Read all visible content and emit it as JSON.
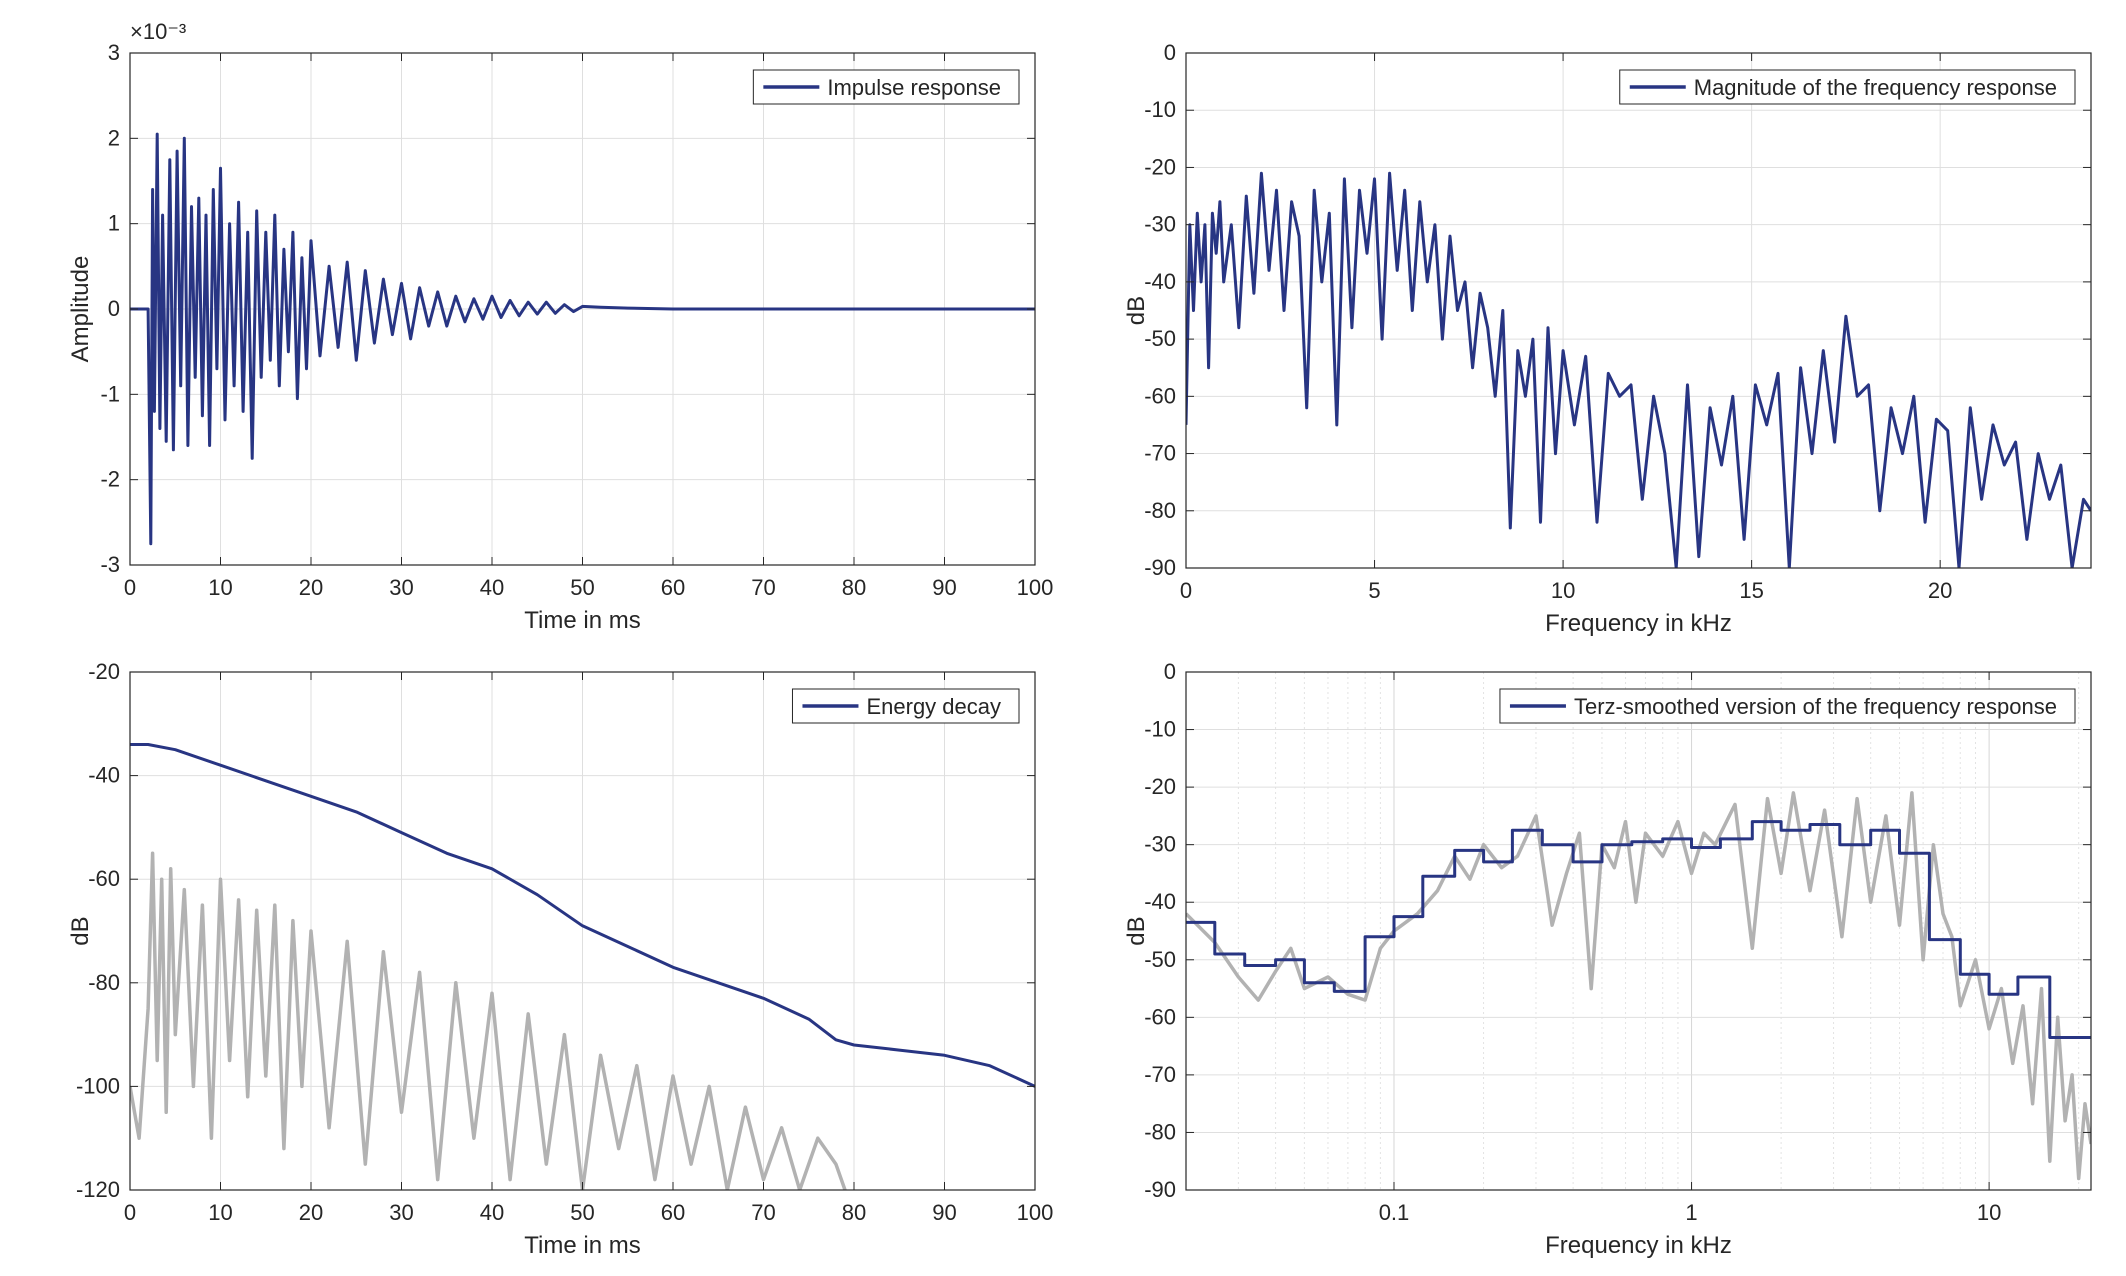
{
  "chart_data": [
    {
      "id": "impulse",
      "type": "line",
      "title": "",
      "xlabel": "Time in ms",
      "ylabel": "Amplitude",
      "exponent_label": "×10⁻³",
      "xlim": [
        0,
        100
      ],
      "ylim": [
        -3,
        3
      ],
      "xscale": "linear",
      "xticks": [
        0,
        10,
        20,
        30,
        40,
        50,
        60,
        70,
        80,
        90,
        100
      ],
      "yticks": [
        -3,
        -2,
        -1,
        0,
        1,
        2,
        3
      ],
      "grid": true,
      "legend": {
        "placement": "top-right",
        "entries": [
          "Impulse response"
        ]
      },
      "series": [
        {
          "name": "Impulse response",
          "color": "#283583",
          "x": [
            0,
            2.0,
            2.3,
            2.5,
            2.7,
            3.0,
            3.3,
            3.6,
            4.0,
            4.4,
            4.8,
            5.2,
            5.6,
            6.0,
            6.4,
            6.8,
            7.2,
            7.6,
            8.0,
            8.4,
            8.8,
            9.2,
            9.6,
            10.0,
            10.5,
            11.0,
            11.5,
            12.0,
            12.5,
            13.0,
            13.5,
            14.0,
            14.5,
            15.0,
            15.5,
            16.0,
            16.5,
            17.0,
            17.5,
            18.0,
            18.5,
            19.0,
            19.5,
            20.0,
            21,
            22,
            23,
            24,
            25,
            26,
            27,
            28,
            29,
            30,
            31,
            32,
            33,
            34,
            35,
            36,
            37,
            38,
            39,
            40,
            41,
            42,
            43,
            44,
            45,
            46,
            47,
            48,
            49,
            50,
            52,
            55,
            60,
            70,
            80,
            90,
            100
          ],
          "y": [
            0,
            0,
            -2.75,
            1.4,
            -1.2,
            2.05,
            -1.4,
            1.1,
            -1.55,
            1.75,
            -1.65,
            1.85,
            -0.9,
            2.0,
            -1.6,
            1.2,
            -0.8,
            1.3,
            -1.25,
            1.1,
            -1.6,
            1.4,
            -0.7,
            1.65,
            -1.3,
            1.0,
            -0.9,
            1.25,
            -1.2,
            0.9,
            -1.75,
            1.15,
            -0.8,
            0.9,
            -0.6,
            1.1,
            -0.9,
            0.7,
            -0.5,
            0.9,
            -1.05,
            0.6,
            -0.7,
            0.8,
            -0.55,
            0.5,
            -0.45,
            0.55,
            -0.6,
            0.45,
            -0.4,
            0.35,
            -0.3,
            0.3,
            -0.35,
            0.25,
            -0.2,
            0.2,
            -0.2,
            0.15,
            -0.15,
            0.12,
            -0.12,
            0.15,
            -0.1,
            0.1,
            -0.08,
            0.08,
            -0.06,
            0.08,
            -0.05,
            0.05,
            -0.03,
            0.03,
            0.02,
            0.01,
            0,
            0,
            0,
            0,
            0
          ]
        }
      ]
    },
    {
      "id": "magnitude",
      "type": "line",
      "title": "",
      "xlabel": "Frequency in kHz",
      "ylabel": "dB",
      "xlim": [
        0,
        24
      ],
      "ylim": [
        -90,
        0
      ],
      "xscale": "linear",
      "xticks": [
        0,
        5,
        10,
        15,
        20
      ],
      "yticks": [
        0,
        -10,
        -20,
        -30,
        -40,
        -50,
        -60,
        -70,
        -80,
        -90
      ],
      "grid": true,
      "legend": {
        "placement": "top-right",
        "entries": [
          "Magnitude of the frequency response"
        ]
      },
      "series": [
        {
          "name": "Magnitude of the frequency response",
          "color": "#283583",
          "x": [
            0,
            0.1,
            0.2,
            0.3,
            0.4,
            0.5,
            0.6,
            0.7,
            0.8,
            0.9,
            1.0,
            1.2,
            1.4,
            1.6,
            1.8,
            2.0,
            2.2,
            2.4,
            2.6,
            2.8,
            3.0,
            3.2,
            3.4,
            3.6,
            3.8,
            4.0,
            4.2,
            4.4,
            4.6,
            4.8,
            5.0,
            5.2,
            5.4,
            5.6,
            5.8,
            6.0,
            6.2,
            6.4,
            6.6,
            6.8,
            7.0,
            7.2,
            7.4,
            7.6,
            7.8,
            8.0,
            8.2,
            8.4,
            8.6,
            8.8,
            9.0,
            9.2,
            9.4,
            9.6,
            9.8,
            10.0,
            10.3,
            10.6,
            10.9,
            11.2,
            11.5,
            11.8,
            12.1,
            12.4,
            12.7,
            13.0,
            13.3,
            13.6,
            13.9,
            14.2,
            14.5,
            14.8,
            15.1,
            15.4,
            15.7,
            16.0,
            16.3,
            16.6,
            16.9,
            17.2,
            17.5,
            17.8,
            18.1,
            18.4,
            18.7,
            19.0,
            19.3,
            19.6,
            19.9,
            20.2,
            20.5,
            20.8,
            21.1,
            21.4,
            21.7,
            22.0,
            22.3,
            22.6,
            22.9,
            23.2,
            23.5,
            23.8,
            24.0
          ],
          "y": [
            -65,
            -30,
            -45,
            -28,
            -40,
            -30,
            -55,
            -28,
            -35,
            -26,
            -40,
            -30,
            -48,
            -25,
            -42,
            -21,
            -38,
            -24,
            -45,
            -26,
            -32,
            -62,
            -24,
            -40,
            -28,
            -65,
            -22,
            -48,
            -24,
            -35,
            -22,
            -50,
            -21,
            -38,
            -24,
            -45,
            -26,
            -40,
            -30,
            -50,
            -32,
            -45,
            -40,
            -55,
            -42,
            -48,
            -60,
            -45,
            -83,
            -52,
            -60,
            -50,
            -82,
            -48,
            -70,
            -52,
            -65,
            -53,
            -82,
            -56,
            -60,
            -58,
            -78,
            -60,
            -70,
            -90,
            -58,
            -88,
            -62,
            -72,
            -60,
            -85,
            -58,
            -65,
            -56,
            -90,
            -55,
            -70,
            -52,
            -68,
            -46,
            -60,
            -58,
            -80,
            -62,
            -70,
            -60,
            -82,
            -64,
            -66,
            -90,
            -62,
            -78,
            -65,
            -72,
            -68,
            -85,
            -70,
            -78,
            -72,
            -90,
            -78,
            -80
          ]
        }
      ]
    },
    {
      "id": "energy",
      "type": "line",
      "title": "",
      "xlabel": "Time in ms",
      "ylabel": "dB",
      "xlim": [
        0,
        100
      ],
      "ylim": [
        -120,
        -20
      ],
      "xscale": "linear",
      "xticks": [
        0,
        10,
        20,
        30,
        40,
        50,
        60,
        70,
        80,
        90,
        100
      ],
      "yticks": [
        -20,
        -40,
        -60,
        -80,
        -100,
        -120
      ],
      "grid": true,
      "legend": {
        "placement": "top-right",
        "entries": [
          "Energy decay"
        ]
      },
      "series": [
        {
          "name": "Energy decay",
          "color": "#283583",
          "x": [
            0,
            2,
            5,
            10,
            15,
            20,
            25,
            30,
            35,
            40,
            45,
            50,
            55,
            60,
            65,
            70,
            75,
            78,
            80,
            85,
            90,
            95,
            100
          ],
          "y": [
            -34,
            -34,
            -35,
            -38,
            -41,
            -44,
            -47,
            -51,
            -55,
            -58,
            -63,
            -69,
            -73,
            -77,
            -80,
            -83,
            -87,
            -91,
            -92,
            -93,
            -94,
            -96,
            -100
          ]
        },
        {
          "color": "#b2b2b2",
          "x": [
            0,
            1,
            2,
            2.5,
            3,
            3.5,
            4,
            4.5,
            5,
            6,
            7,
            8,
            9,
            10,
            11,
            12,
            13,
            14,
            15,
            16,
            17,
            18,
            19,
            20,
            22,
            24,
            26,
            28,
            30,
            32,
            34,
            36,
            38,
            40,
            42,
            44,
            46,
            48,
            50,
            52,
            54,
            56,
            58,
            60,
            62,
            64,
            66,
            68,
            70,
            72,
            74,
            76,
            78,
            79
          ],
          "y": [
            -100,
            -110,
            -85,
            -55,
            -95,
            -60,
            -105,
            -58,
            -90,
            -62,
            -100,
            -65,
            -110,
            -60,
            -95,
            -64,
            -102,
            -66,
            -98,
            -65,
            -112,
            -68,
            -100,
            -70,
            -108,
            -72,
            -115,
            -74,
            -105,
            -78,
            -118,
            -80,
            -110,
            -82,
            -118,
            -86,
            -115,
            -90,
            -120,
            -94,
            -112,
            -96,
            -118,
            -98,
            -115,
            -100,
            -120,
            -104,
            -118,
            -108,
            -120,
            -110,
            -115,
            -120
          ]
        }
      ]
    },
    {
      "id": "terz",
      "type": "line",
      "title": "",
      "xlabel": "Frequency in kHz",
      "ylabel": "dB",
      "xlim": [
        0.02,
        22
      ],
      "ylim": [
        -90,
        0
      ],
      "xscale": "log",
      "xticks": [
        0.1,
        1,
        10
      ],
      "xticklabels": [
        "0.1",
        "1",
        "10"
      ],
      "yticks": [
        0,
        -10,
        -20,
        -30,
        -40,
        -50,
        -60,
        -70,
        -80,
        -90
      ],
      "grid": true,
      "legend": {
        "placement": "top-right",
        "entries": [
          "Terz-smoothed version of the frequency response"
        ]
      },
      "series": [
        {
          "name": "Terz-smoothed version of the frequency response",
          "color": "#283583",
          "step": true,
          "bands": [
            0.02,
            0.025,
            0.0315,
            0.04,
            0.05,
            0.063,
            0.08,
            0.1,
            0.125,
            0.16,
            0.2,
            0.25,
            0.315,
            0.4,
            0.5,
            0.63,
            0.8,
            1.0,
            1.25,
            1.6,
            2.0,
            2.5,
            3.15,
            4.0,
            5.0,
            6.3,
            8.0,
            10.0,
            12.5,
            16.0,
            20.0,
            22
          ],
          "values": [
            -43.5,
            -49,
            -51,
            -50,
            -54,
            -55.5,
            -46,
            -42.5,
            -35.5,
            -31,
            -33,
            -27.5,
            -30,
            -33,
            -30,
            -29.5,
            -29,
            -30.5,
            -29,
            -26,
            -27.5,
            -26.5,
            -30,
            -27.5,
            -31.5,
            -46.5,
            -52.5,
            -56,
            -53,
            -63.5,
            -63.5
          ]
        },
        {
          "color": "#b2b2b2",
          "x": [
            0.02,
            0.025,
            0.03,
            0.035,
            0.04,
            0.045,
            0.05,
            0.06,
            0.07,
            0.08,
            0.09,
            0.1,
            0.12,
            0.14,
            0.16,
            0.18,
            0.2,
            0.23,
            0.26,
            0.3,
            0.34,
            0.38,
            0.42,
            0.46,
            0.5,
            0.55,
            0.6,
            0.65,
            0.7,
            0.8,
            0.9,
            1.0,
            1.1,
            1.2,
            1.4,
            1.6,
            1.8,
            2.0,
            2.2,
            2.5,
            2.8,
            3.2,
            3.6,
            4.0,
            4.5,
            5.0,
            5.5,
            6.0,
            6.5,
            7.0,
            7.5,
            8.0,
            9.0,
            10,
            11,
            12,
            13,
            14,
            15,
            16,
            17,
            18,
            19,
            20,
            21,
            22
          ],
          "y": [
            -42,
            -47,
            -53,
            -57,
            -52,
            -48,
            -55,
            -53,
            -56,
            -57,
            -48,
            -45,
            -42,
            -38,
            -32,
            -36,
            -30,
            -34,
            -32,
            -25,
            -44,
            -35,
            -28,
            -55,
            -30,
            -34,
            -26,
            -40,
            -28,
            -32,
            -26,
            -35,
            -28,
            -30,
            -23,
            -48,
            -22,
            -35,
            -21,
            -38,
            -24,
            -46,
            -22,
            -40,
            -25,
            -44,
            -21,
            -50,
            -30,
            -42,
            -46,
            -58,
            -50,
            -62,
            -55,
            -68,
            -58,
            -75,
            -55,
            -85,
            -60,
            -78,
            -70,
            -88,
            -75,
            -82
          ]
        }
      ]
    }
  ]
}
